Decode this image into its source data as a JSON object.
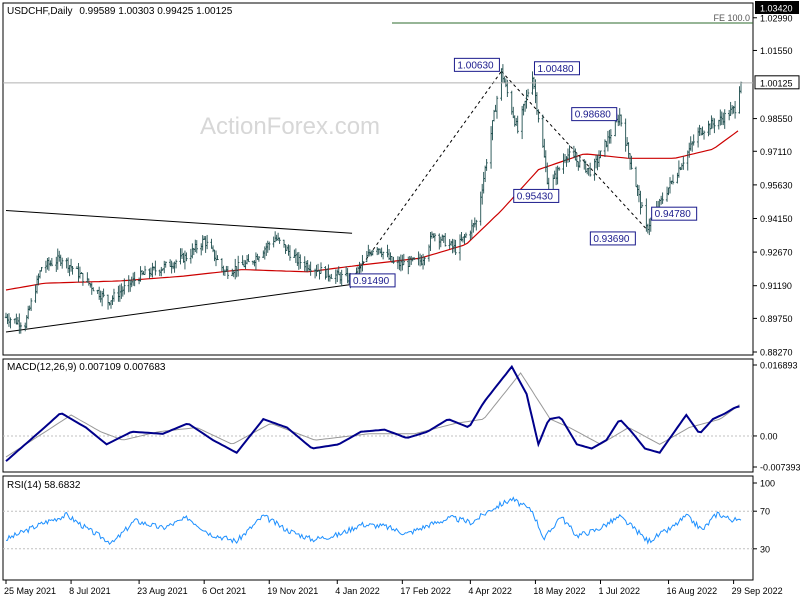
{
  "chart_data": [
    {
      "type": "candlestick",
      "title": "USDCHF,Daily",
      "ohlc": "0.99589 1.00303 0.99425 1.00125",
      "watermark": "ActionForex.com",
      "ylim": [
        0.8827,
        1.0342
      ],
      "yticks": [
        "1.02990",
        "1.01550",
        "0.98550",
        "0.97110",
        "0.95630",
        "0.94150",
        "0.92670",
        "0.91190",
        "0.89750",
        "0.88270"
      ],
      "current_price": "1.00125",
      "current_value": 1.00125,
      "fe_label": "FE 100.0",
      "fe_value": "1.03420",
      "fe_level": 1.0342,
      "moving_average_color": "#cc0000",
      "price_annotations": [
        {
          "text": "1.00630",
          "value": 1.0063,
          "date": "2022-04-25"
        },
        {
          "text": "1.00480",
          "value": 1.0048,
          "date": "2022-05-16"
        },
        {
          "text": "0.95430",
          "value": 0.9543,
          "date": "2022-05-27"
        },
        {
          "text": "0.98680",
          "value": 0.9868,
          "date": "2022-07-14"
        },
        {
          "text": "0.94780",
          "value": 0.9478,
          "date": "2022-08-10"
        },
        {
          "text": "0.93690",
          "value": 0.9369,
          "date": "2022-08-01"
        },
        {
          "text": "0.91490",
          "value": 0.9149,
          "date": "2022-01-14"
        }
      ],
      "wave_lines": [
        {
          "from": [
            "2022-01-14",
            0.9149
          ],
          "to": [
            "2022-04-25",
            1.0063
          ]
        },
        {
          "from": [
            "2022-04-25",
            1.0063
          ],
          "to": [
            "2022-08-01",
            0.9369
          ]
        }
      ],
      "triangle_lines": [
        {
          "from": [
            "2021-05-25",
            0.945
          ],
          "to": [
            "2022-01-14",
            0.935
          ]
        },
        {
          "from": [
            "2021-05-25",
            0.8915
          ],
          "to": [
            "2022-01-14",
            0.9125
          ]
        }
      ],
      "price_path": [
        [
          "2021-05-25",
          0.898
        ],
        [
          "2021-06-07",
          0.895
        ],
        [
          "2021-06-18",
          0.92
        ],
        [
          "2021-07-02",
          0.924
        ],
        [
          "2021-07-15",
          0.916
        ],
        [
          "2021-08-02",
          0.905
        ],
        [
          "2021-08-23",
          0.916
        ],
        [
          "2021-09-08",
          0.92
        ],
        [
          "2021-09-25",
          0.925
        ],
        [
          "2021-10-06",
          0.932
        ],
        [
          "2021-10-20",
          0.918
        ],
        [
          "2021-11-06",
          0.922
        ],
        [
          "2021-11-23",
          0.933
        ],
        [
          "2021-12-08",
          0.923
        ],
        [
          "2021-12-29",
          0.917
        ],
        [
          "2022-01-14",
          0.9149
        ],
        [
          "2022-01-30",
          0.93
        ],
        [
          "2022-02-12",
          0.921
        ],
        [
          "2022-03-02",
          0.923
        ],
        [
          "2022-03-10",
          0.935
        ],
        [
          "2022-03-25",
          0.928
        ],
        [
          "2022-04-08",
          0.94
        ],
        [
          "2022-04-25",
          1.0063
        ],
        [
          "2022-05-06",
          0.98
        ],
        [
          "2022-05-16",
          1.0048
        ],
        [
          "2022-05-27",
          0.9543
        ],
        [
          "2022-06-08",
          0.97
        ],
        [
          "2022-06-25",
          0.962
        ],
        [
          "2022-07-14",
          0.9868
        ],
        [
          "2022-08-01",
          0.9369
        ],
        [
          "2022-08-10",
          0.9478
        ],
        [
          "2022-08-25",
          0.966
        ],
        [
          "2022-09-06",
          0.98
        ],
        [
          "2022-09-20",
          0.985
        ],
        [
          "2022-09-30",
          0.99
        ],
        [
          "2022-10-04",
          1.0025
        ]
      ],
      "ma_path": [
        [
          "2021-05-25",
          0.91
        ],
        [
          "2021-06-20",
          0.913
        ],
        [
          "2021-08-10",
          0.914
        ],
        [
          "2021-09-20",
          0.916
        ],
        [
          "2021-11-01",
          0.919
        ],
        [
          "2021-12-15",
          0.918
        ],
        [
          "2022-01-20",
          0.921
        ],
        [
          "2022-03-01",
          0.924
        ],
        [
          "2022-04-01",
          0.93
        ],
        [
          "2022-04-25",
          0.945
        ],
        [
          "2022-05-20",
          0.963
        ],
        [
          "2022-06-20",
          0.97
        ],
        [
          "2022-07-20",
          0.968
        ],
        [
          "2022-08-20",
          0.968
        ],
        [
          "2022-09-15",
          0.972
        ],
        [
          "2022-10-04",
          0.981
        ]
      ],
      "x_tick_labels": [
        {
          "text": "25 May 2021",
          "date": "2021-05-25"
        },
        {
          "text": "8 Jul 2021",
          "date": "2021-07-08"
        },
        {
          "text": "23 Aug 2021",
          "date": "2021-08-23"
        },
        {
          "text": "6 Oct 2021",
          "date": "2021-10-06"
        },
        {
          "text": "19 Nov 2021",
          "date": "2021-11-19"
        },
        {
          "text": "4 Jan 2022",
          "date": "2022-01-04"
        },
        {
          "text": "17 Feb 2022",
          "date": "2022-02-17"
        },
        {
          "text": "4 Apr 2022",
          "date": "2022-04-04"
        },
        {
          "text": "18 May 2022",
          "date": "2022-05-18"
        },
        {
          "text": "1 Jul 2022",
          "date": "2022-07-01"
        },
        {
          "text": "16 Aug 2022",
          "date": "2022-08-16"
        },
        {
          "text": "29 Sep 2022",
          "date": "2022-09-29"
        }
      ]
    },
    {
      "type": "line",
      "title": "MACD(12,26,9) 0.007109 0.007683",
      "ylim": [
        -0.007393,
        0.016893
      ],
      "yticks": [
        "0.016893",
        "0.00",
        "-0.007393"
      ],
      "series": [
        {
          "name": "",
          "color": "#00008b",
          "points": [
            [
              "2021-05-25",
              -0.006
            ],
            [
              "2021-06-20",
              0.002
            ],
            [
              "2021-07-01",
              0.0055
            ],
            [
              "2021-07-18",
              0.002
            ],
            [
              "2021-08-01",
              -0.002
            ],
            [
              "2021-08-18",
              0.001
            ],
            [
              "2021-09-08",
              0.0005
            ],
            [
              "2021-09-25",
              0.003
            ],
            [
              "2021-10-12",
              -0.001
            ],
            [
              "2021-10-28",
              -0.004
            ],
            [
              "2021-11-15",
              0.004
            ],
            [
              "2021-12-01",
              0.002
            ],
            [
              "2021-12-18",
              -0.003
            ],
            [
              "2022-01-05",
              -0.002
            ],
            [
              "2022-01-20",
              0.001
            ],
            [
              "2022-02-05",
              0.0015
            ],
            [
              "2022-02-20",
              -0.0005
            ],
            [
              "2022-03-06",
              0.001
            ],
            [
              "2022-03-20",
              0.004
            ],
            [
              "2022-04-03",
              0.002
            ],
            [
              "2022-04-13",
              0.008
            ],
            [
              "2022-05-02",
              0.0165
            ],
            [
              "2022-05-12",
              0.01
            ],
            [
              "2022-05-20",
              -0.002
            ],
            [
              "2022-05-27",
              0.004
            ],
            [
              "2022-06-04",
              0.0045
            ],
            [
              "2022-06-15",
              -0.002
            ],
            [
              "2022-06-25",
              -0.003
            ],
            [
              "2022-07-05",
              -0.001
            ],
            [
              "2022-07-14",
              0.004
            ],
            [
              "2022-07-22",
              0.001
            ],
            [
              "2022-07-31",
              -0.003
            ],
            [
              "2022-08-10",
              -0.004
            ],
            [
              "2022-08-20",
              0.001
            ],
            [
              "2022-08-28",
              0.005
            ],
            [
              "2022-09-06",
              0.0005
            ],
            [
              "2022-09-15",
              0.004
            ],
            [
              "2022-09-24",
              0.0055
            ],
            [
              "2022-09-30",
              0.0068
            ],
            [
              "2022-10-04",
              0.0071
            ]
          ]
        },
        {
          "name": "",
          "color": "#999999",
          "points": [
            [
              "2021-05-25",
              -0.005
            ],
            [
              "2021-06-25",
              0.002
            ],
            [
              "2021-07-08",
              0.005
            ],
            [
              "2021-07-28",
              0.001
            ],
            [
              "2021-08-12",
              -0.001
            ],
            [
              "2021-09-05",
              0.001
            ],
            [
              "2021-10-01",
              0.002
            ],
            [
              "2021-10-25",
              -0.002
            ],
            [
              "2021-11-20",
              0.003
            ],
            [
              "2021-12-20",
              -0.001
            ],
            [
              "2022-01-25",
              0.0005
            ],
            [
              "2022-02-25",
              0.0005
            ],
            [
              "2022-03-25",
              0.003
            ],
            [
              "2022-04-13",
              0.004
            ],
            [
              "2022-05-08",
              0.015
            ],
            [
              "2022-05-28",
              0.004
            ],
            [
              "2022-06-10",
              0.002
            ],
            [
              "2022-07-01",
              -0.002
            ],
            [
              "2022-07-20",
              0.002
            ],
            [
              "2022-08-10",
              -0.002
            ],
            [
              "2022-08-30",
              0.002
            ],
            [
              "2022-09-20",
              0.004
            ],
            [
              "2022-10-04",
              0.0077
            ]
          ]
        }
      ]
    },
    {
      "type": "line",
      "title": "RSI(14) 58.6832",
      "ylim": [
        0,
        100
      ],
      "yticks": [
        "100",
        "70",
        "30",
        "0"
      ],
      "series": [
        {
          "name": "",
          "color": "#1e90ff",
          "points": [
            [
              "2021-05-25",
              40
            ],
            [
              "2021-06-20",
              58
            ],
            [
              "2021-07-05",
              66
            ],
            [
              "2021-07-20",
              50
            ],
            [
              "2021-08-05",
              36
            ],
            [
              "2021-08-20",
              60
            ],
            [
              "2021-09-08",
              52
            ],
            [
              "2021-09-25",
              63
            ],
            [
              "2021-10-10",
              46
            ],
            [
              "2021-10-28",
              38
            ],
            [
              "2021-11-15",
              65
            ],
            [
              "2021-12-01",
              50
            ],
            [
              "2021-12-18",
              40
            ],
            [
              "2022-01-05",
              45
            ],
            [
              "2022-01-20",
              56
            ],
            [
              "2022-02-05",
              54
            ],
            [
              "2022-02-20",
              46
            ],
            [
              "2022-03-08",
              56
            ],
            [
              "2022-03-22",
              63
            ],
            [
              "2022-04-05",
              58
            ],
            [
              "2022-04-18",
              72
            ],
            [
              "2022-05-02",
              83
            ],
            [
              "2022-05-16",
              70
            ],
            [
              "2022-05-24",
              40
            ],
            [
              "2022-06-04",
              65
            ],
            [
              "2022-06-15",
              44
            ],
            [
              "2022-06-28",
              50
            ],
            [
              "2022-07-14",
              64
            ],
            [
              "2022-07-25",
              50
            ],
            [
              "2022-08-02",
              38
            ],
            [
              "2022-08-18",
              52
            ],
            [
              "2022-08-28",
              65
            ],
            [
              "2022-09-08",
              50
            ],
            [
              "2022-09-18",
              68
            ],
            [
              "2022-09-26",
              62
            ],
            [
              "2022-10-04",
              59
            ]
          ]
        }
      ]
    }
  ]
}
